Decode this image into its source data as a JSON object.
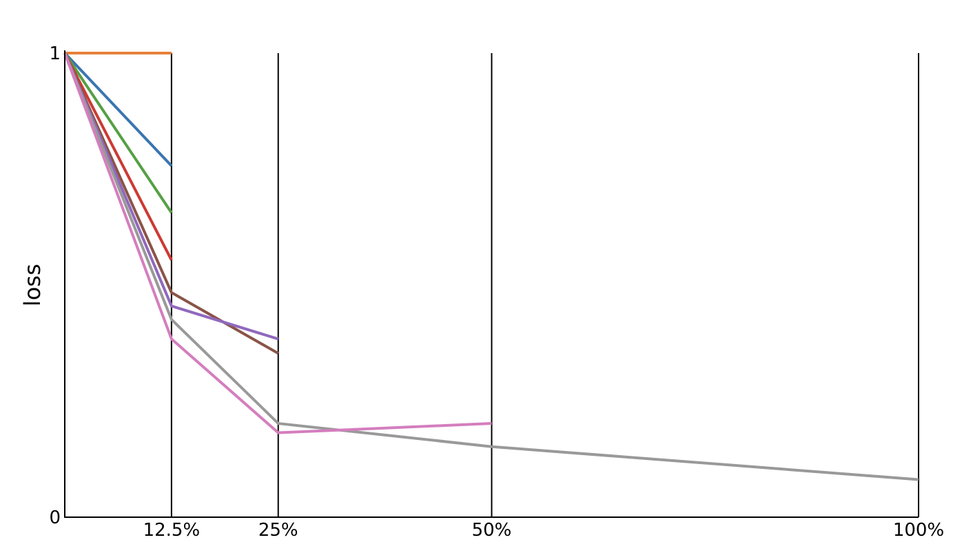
{
  "chart_data": {
    "type": "line",
    "title": "",
    "xlabel": "",
    "ylabel": "loss",
    "ylim": [
      0,
      1
    ],
    "xlim": [
      0,
      100
    ],
    "y_ticks": [
      {
        "value": 0,
        "label": "0"
      },
      {
        "value": 1,
        "label": "1"
      }
    ],
    "x_ticks": [
      {
        "value": 12.5,
        "label": "12.5%"
      },
      {
        "value": 25,
        "label": "25%"
      },
      {
        "value": 50,
        "label": "50%"
      },
      {
        "value": 100,
        "label": "100%"
      }
    ],
    "vertical_lines_at": [
      12.5,
      25,
      50,
      100
    ],
    "grid": false,
    "legend": "none",
    "series": [
      {
        "color": "#e8803a",
        "x": [
          0,
          12.5
        ],
        "y": [
          1.0,
          1.0
        ]
      },
      {
        "color": "#3a75b0",
        "x": [
          0,
          12.5
        ],
        "y": [
          1.0,
          0.757
        ]
      },
      {
        "color": "#55a044",
        "x": [
          0,
          12.5
        ],
        "y": [
          1.0,
          0.656
        ]
      },
      {
        "color": "#cc3a33",
        "x": [
          0,
          12.5
        ],
        "y": [
          1.0,
          0.554
        ]
      },
      {
        "color": "#8a5448",
        "x": [
          0,
          12.5,
          25
        ],
        "y": [
          1.0,
          0.484,
          0.353
        ]
      },
      {
        "color": "#9068bd",
        "x": [
          0,
          12.5,
          25
        ],
        "y": [
          1.0,
          0.455,
          0.384
        ]
      },
      {
        "color": "#999999",
        "x": [
          0,
          12.5,
          25,
          50,
          100
        ],
        "y": [
          1.0,
          0.426,
          0.202,
          0.152,
          0.081
        ]
      },
      {
        "color": "#d47ebe",
        "x": [
          0,
          12.5,
          25,
          50
        ],
        "y": [
          1.0,
          0.384,
          0.182,
          0.202
        ]
      }
    ]
  }
}
